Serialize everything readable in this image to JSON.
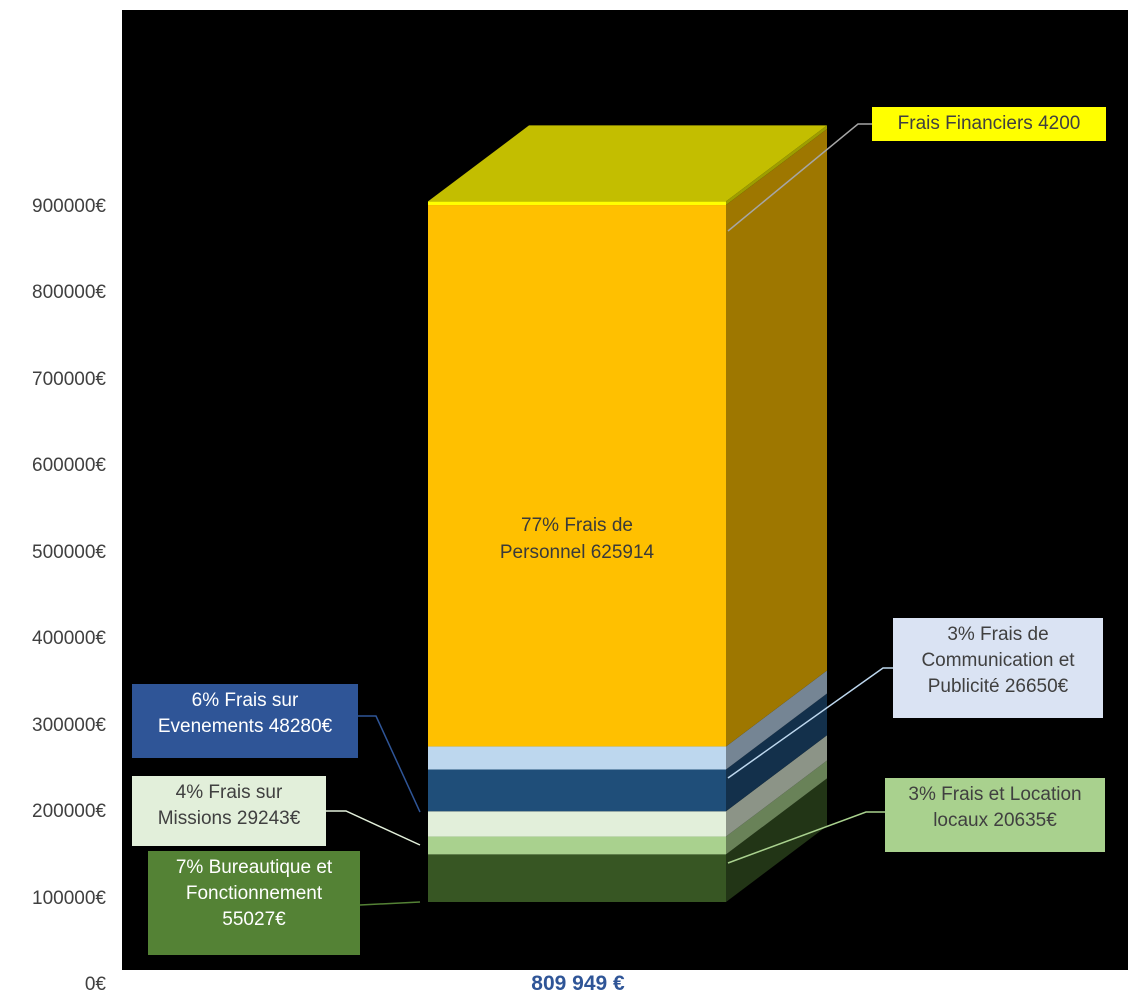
{
  "chart_data": {
    "type": "bar",
    "subtype": "stacked-3d-column",
    "total_label": "809 949 €",
    "yticks": [
      "0€",
      "100000€",
      "200000€",
      "300000€",
      "400000€",
      "500000€",
      "600000€",
      "700000€",
      "800000€",
      "900000€"
    ],
    "ylim": [
      0,
      1000000
    ],
    "series": [
      {
        "key": "bureau",
        "value": 55027,
        "color": "#375623",
        "lines": [
          "7% Bureautique et",
          "Fonctionnement",
          "55027€"
        ],
        "label_bg": "#548235",
        "label_fg": "#ffffff"
      },
      {
        "key": "locaux",
        "value": 20635,
        "color": "#a9d18e",
        "lines": [
          "3% Frais et Location",
          "locaux 20635€"
        ],
        "label_bg": "#a9d18e",
        "label_fg": "#404040"
      },
      {
        "key": "missions",
        "value": 29243,
        "color": "#e2efda",
        "lines": [
          "4% Frais sur",
          "Missions 29243€"
        ],
        "label_bg": "#e2efda",
        "label_fg": "#404040"
      },
      {
        "key": "evenements",
        "value": 48280,
        "color": "#1f4e79",
        "lines": [
          "6% Frais sur",
          "Evenements 48280€"
        ],
        "label_bg": "#2f5597",
        "label_fg": "#ffffff"
      },
      {
        "key": "communication",
        "value": 26650,
        "color": "#bdd7ee",
        "lines": [
          "3% Frais de",
          "Communication et",
          "Publicité 26650€"
        ],
        "label_bg": "#dae3f3",
        "label_fg": "#404040"
      },
      {
        "key": "personnel",
        "value": 625914,
        "color": "#ffc000",
        "lines": [
          "77% Frais de",
          "Personnel 625914"
        ],
        "label_bg": "",
        "label_fg": "#3a3a3a"
      },
      {
        "key": "financiers",
        "value": 4200,
        "color": "#ffff00",
        "lines": [
          "Frais Financiers 4200"
        ],
        "label_bg": "#ffff00",
        "label_fg": "#404040"
      }
    ]
  }
}
